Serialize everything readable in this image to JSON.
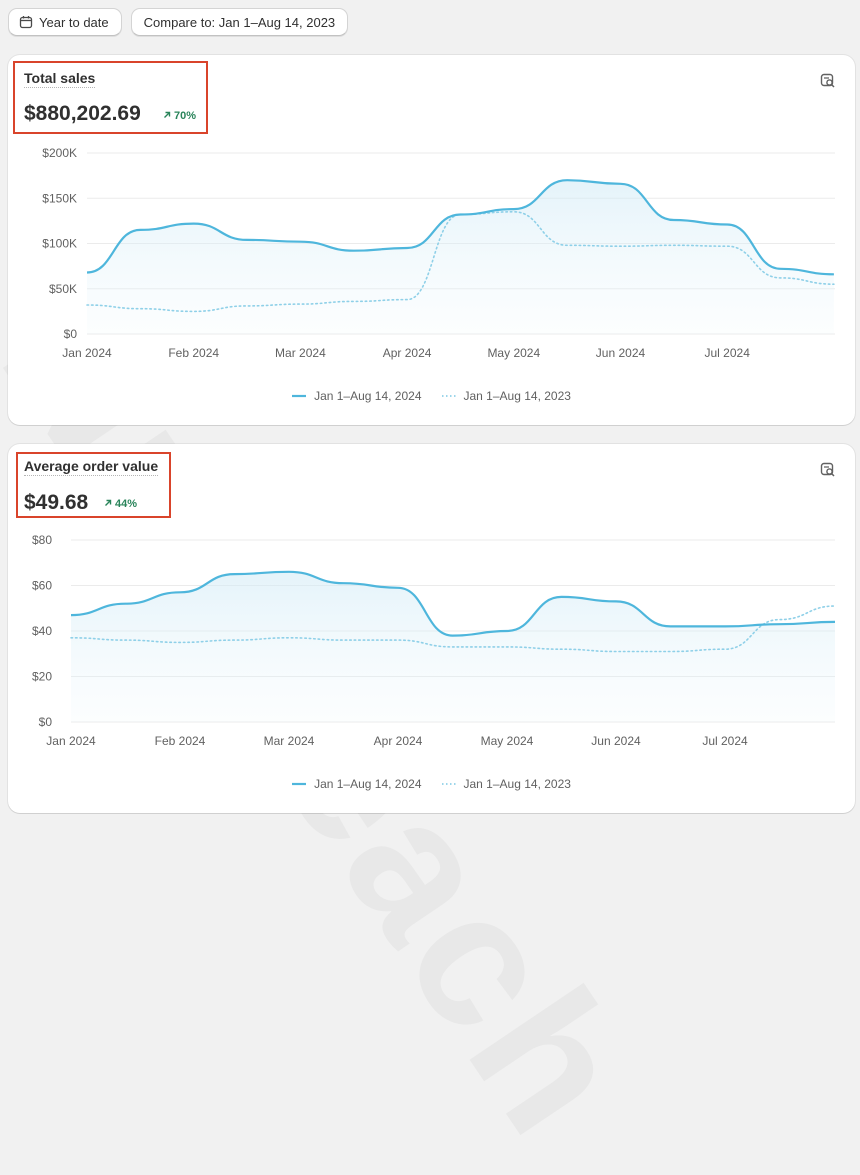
{
  "toolbar": {
    "date_range_label": "Year to date",
    "compare_label": "Compare to: Jan 1–Aug 14, 2023"
  },
  "watermark": "Nuhaeach",
  "colors": {
    "current_series": "#4eb6dc",
    "previous_series": "#8fd0e8",
    "highlight_box": "#d9442b",
    "positive_delta": "#29845a"
  },
  "cards": [
    {
      "title": "Total sales",
      "value": "$880,202.69",
      "delta": "70%",
      "legend": {
        "current": "Jan 1–Aug 14, 2024",
        "previous": "Jan 1–Aug 14, 2023"
      }
    },
    {
      "title": "Average order value",
      "value": "$49.68",
      "delta": "44%",
      "legend": {
        "current": "Jan 1–Aug 14, 2024",
        "previous": "Jan 1–Aug 14, 2023"
      }
    }
  ],
  "chart_data": [
    {
      "type": "line",
      "title": "Total sales",
      "y_ticks": [
        "$0",
        "$50K",
        "$100K",
        "$150K",
        "$200K"
      ],
      "ylim": [
        0,
        200000
      ],
      "x_labels": [
        "Jan 2024",
        "Feb 2024",
        "Mar 2024",
        "Apr 2024",
        "May 2024",
        "Jun 2024",
        "Jul 2024"
      ],
      "x": [
        0,
        0.5,
        1,
        1.5,
        2,
        2.5,
        3,
        3.5,
        4,
        4.5,
        5,
        5.5,
        6,
        6.5,
        7.0
      ],
      "series": [
        {
          "name": "Jan 1–Aug 14, 2024",
          "style": "solid",
          "values": [
            68000,
            115000,
            122000,
            104000,
            102000,
            92000,
            95000,
            132000,
            138000,
            170000,
            166000,
            126000,
            121000,
            72000,
            66000
          ]
        },
        {
          "name": "Jan 1–Aug 14, 2023",
          "style": "dotted",
          "values": [
            32000,
            28000,
            25000,
            31000,
            33000,
            36000,
            38000,
            132000,
            135000,
            98000,
            97000,
            98000,
            97000,
            62000,
            55000
          ]
        }
      ],
      "grid": true,
      "legend_position": "bottom-center"
    },
    {
      "type": "line",
      "title": "Average order value",
      "y_ticks": [
        "$0",
        "$20",
        "$40",
        "$60",
        "$80"
      ],
      "ylim": [
        0,
        80
      ],
      "x_labels": [
        "Jan 2024",
        "Feb 2024",
        "Mar 2024",
        "Apr 2024",
        "May 2024",
        "Jun 2024",
        "Jul 2024"
      ],
      "x": [
        0,
        0.5,
        1,
        1.5,
        2,
        2.5,
        3,
        3.5,
        4,
        4.5,
        5,
        5.5,
        6,
        6.5,
        7.2
      ],
      "series": [
        {
          "name": "Jan 1–Aug 14, 2024",
          "style": "solid",
          "values": [
            47,
            52,
            57,
            65,
            66,
            61,
            59,
            38,
            40,
            55,
            53,
            42,
            42,
            43,
            44
          ]
        },
        {
          "name": "Jan 1–Aug 14, 2023",
          "style": "dotted",
          "values": [
            37,
            36,
            35,
            36,
            37,
            36,
            36,
            33,
            33,
            32,
            31,
            31,
            32,
            45,
            51
          ]
        }
      ],
      "grid": true,
      "legend_position": "bottom-center"
    }
  ]
}
